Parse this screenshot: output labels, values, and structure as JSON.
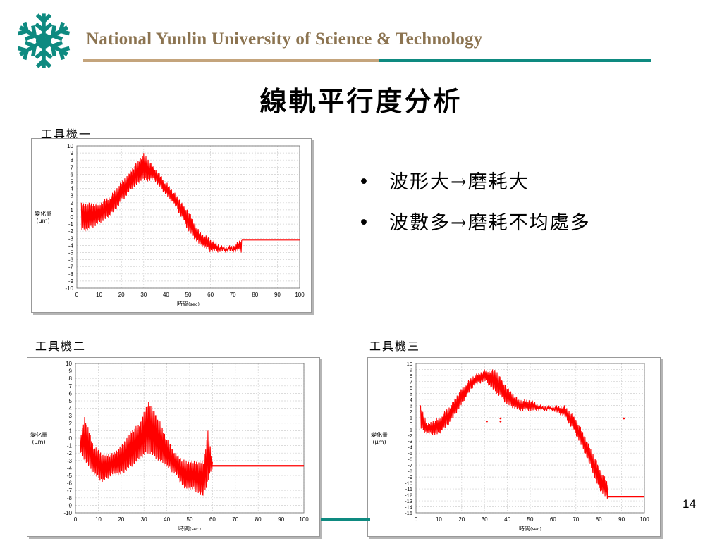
{
  "header": {
    "university": "National Yunlin University of Science & Technology",
    "logo_icon": "snowflake-logo-icon"
  },
  "slide": {
    "title": "線軌平行度分析",
    "page_number": "14",
    "bullets": [
      {
        "marker": "•",
        "text": "波形大→磨耗大"
      },
      {
        "marker": "•",
        "text": "波數多→磨耗不均處多"
      }
    ]
  },
  "colors": {
    "brand_gold": "#8c7451",
    "rule_gold": "#c4a47c",
    "rule_teal": "#0e8a80",
    "signal_red": "#ff0000"
  },
  "chart_data": [
    {
      "id": "machine1",
      "type": "line",
      "label": "工具機一",
      "xlabel": "時間",
      "xunit": "(sec)",
      "ylabel": "變化量",
      "yunit": "(μm)",
      "xlim": [
        0,
        100
      ],
      "ylim": [
        -10,
        10
      ],
      "xticks": [
        0,
        10,
        20,
        30,
        40,
        50,
        60,
        70,
        80,
        90,
        100
      ],
      "yticks": [
        10,
        9,
        8,
        7,
        6,
        5,
        4,
        3,
        2,
        1,
        0,
        -1,
        -2,
        -3,
        -4,
        -5,
        -6,
        -7,
        -8,
        -9,
        -10
      ],
      "grid": true,
      "series": [
        {
          "values_upper": [
            [
              2,
              2
            ],
            [
              5,
              2
            ],
            [
              10,
              2
            ],
            [
              15,
              3
            ],
            [
              20,
              5
            ],
            [
              25,
              7
            ],
            [
              30,
              9
            ],
            [
              35,
              7
            ],
            [
              40,
              5
            ],
            [
              45,
              3
            ],
            [
              50,
              1
            ],
            [
              55,
              -2
            ],
            [
              60,
              -3
            ],
            [
              65,
              -4
            ],
            [
              70,
              -4
            ],
            [
              74,
              -3
            ]
          ],
          "values_lower": [
            [
              2,
              -2
            ],
            [
              5,
              -2
            ],
            [
              10,
              -1
            ],
            [
              15,
              0
            ],
            [
              20,
              2
            ],
            [
              25,
              4
            ],
            [
              30,
              5
            ],
            [
              35,
              5
            ],
            [
              40,
              3
            ],
            [
              45,
              1
            ],
            [
              50,
              -2
            ],
            [
              55,
              -4
            ],
            [
              60,
              -5
            ],
            [
              65,
              -5
            ],
            [
              70,
              -5
            ],
            [
              74,
              -5
            ]
          ],
          "flat_value": -3.2,
          "flat_range": [
            74,
            100
          ]
        }
      ],
      "outliers": []
    },
    {
      "id": "machine2",
      "type": "line",
      "label": "工具機二",
      "xlabel": "時間",
      "xunit": "(sec)",
      "ylabel": "變化量",
      "yunit": "(μm)",
      "xlim": [
        0,
        100
      ],
      "ylim": [
        -10,
        10
      ],
      "xticks": [
        0,
        10,
        20,
        30,
        40,
        50,
        60,
        70,
        80,
        90,
        100
      ],
      "yticks": [
        10,
        9,
        8,
        7,
        6,
        5,
        4,
        3,
        2,
        1,
        0,
        -1,
        -2,
        -3,
        -4,
        -5,
        -6,
        -7,
        -8,
        -9,
        -10
      ],
      "grid": true,
      "series": [
        {
          "values_upper": [
            [
              2,
              0
            ],
            [
              4,
              3
            ],
            [
              8,
              -1
            ],
            [
              12,
              -2
            ],
            [
              16,
              -2
            ],
            [
              20,
              -1
            ],
            [
              24,
              1
            ],
            [
              28,
              2
            ],
            [
              32,
              5
            ],
            [
              36,
              3
            ],
            [
              40,
              0
            ],
            [
              44,
              -2
            ],
            [
              48,
              -3
            ],
            [
              52,
              -3
            ],
            [
              56,
              -3
            ],
            [
              58,
              1
            ],
            [
              60,
              -3
            ]
          ],
          "values_lower": [
            [
              2,
              -2
            ],
            [
              4,
              -3
            ],
            [
              8,
              -5
            ],
            [
              12,
              -6
            ],
            [
              16,
              -5
            ],
            [
              20,
              -5
            ],
            [
              24,
              -4
            ],
            [
              28,
              -3
            ],
            [
              32,
              -2
            ],
            [
              36,
              -3
            ],
            [
              40,
              -4
            ],
            [
              44,
              -5
            ],
            [
              48,
              -7
            ],
            [
              52,
              -7
            ],
            [
              56,
              -8
            ],
            [
              58,
              -6
            ],
            [
              60,
              -4
            ]
          ],
          "flat_value": -3.7,
          "flat_range": [
            60,
            100
          ]
        }
      ],
      "outliers": []
    },
    {
      "id": "machine3",
      "type": "line",
      "label": "工具機三",
      "xlabel": "時間",
      "xunit": "(sec)",
      "ylabel": "變化量",
      "yunit": "(μm)",
      "xlim": [
        0,
        100
      ],
      "ylim": [
        -15,
        10
      ],
      "xticks": [
        0,
        10,
        20,
        30,
        40,
        50,
        60,
        70,
        80,
        90,
        100
      ],
      "yticks": [
        10,
        9,
        8,
        7,
        6,
        5,
        4,
        3,
        2,
        1,
        0,
        -1,
        -2,
        -3,
        -4,
        -5,
        -6,
        -7,
        -8,
        -9,
        -10,
        -11,
        -12,
        -13,
        -14,
        -15
      ],
      "grid": true,
      "series": [
        {
          "values_upper": [
            [
              2,
              3
            ],
            [
              5,
              0
            ],
            [
              10,
              1
            ],
            [
              15,
              3
            ],
            [
              20,
              6
            ],
            [
              25,
              8
            ],
            [
              30,
              9
            ],
            [
              35,
              9
            ],
            [
              40,
              6
            ],
            [
              45,
              4
            ],
            [
              50,
              4
            ],
            [
              55,
              3
            ],
            [
              60,
              3
            ],
            [
              65,
              3
            ],
            [
              70,
              1
            ],
            [
              75,
              -3
            ],
            [
              80,
              -7
            ],
            [
              84,
              -10
            ]
          ],
          "values_lower": [
            [
              2,
              -1
            ],
            [
              5,
              -2
            ],
            [
              10,
              -2
            ],
            [
              15,
              0
            ],
            [
              20,
              3
            ],
            [
              25,
              6
            ],
            [
              30,
              7
            ],
            [
              35,
              5
            ],
            [
              40,
              3
            ],
            [
              45,
              2
            ],
            [
              50,
              2
            ],
            [
              55,
              2
            ],
            [
              60,
              2
            ],
            [
              65,
              1
            ],
            [
              70,
              -2
            ],
            [
              75,
              -6
            ],
            [
              80,
              -11
            ],
            [
              84,
              -13
            ]
          ],
          "flat_value": -12.3,
          "flat_range": [
            84,
            100
          ]
        }
      ],
      "outliers": [
        [
          31,
          0.3
        ],
        [
          37,
          0.3
        ],
        [
          37,
          0.8
        ],
        [
          91,
          0.8
        ]
      ]
    }
  ]
}
